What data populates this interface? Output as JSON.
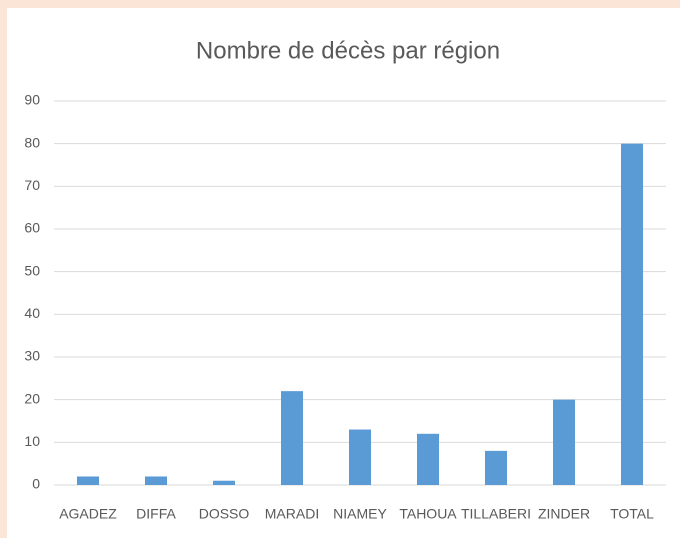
{
  "chart_data": {
    "type": "bar",
    "title": "Nombre de décès par région",
    "categories": [
      "AGADEZ",
      "DIFFA",
      "DOSSO",
      "MARADI",
      "NIAMEY",
      "TAHOUA",
      "TILLABERI",
      "ZINDER",
      "TOTAL"
    ],
    "values": [
      2,
      2,
      1,
      22,
      13,
      12,
      8,
      20,
      80
    ],
    "color": "#5b9bd5",
    "ylim": [
      0,
      90
    ],
    "yticks": [
      0,
      10,
      20,
      30,
      40,
      50,
      60,
      70,
      80,
      90
    ],
    "grid": true
  }
}
